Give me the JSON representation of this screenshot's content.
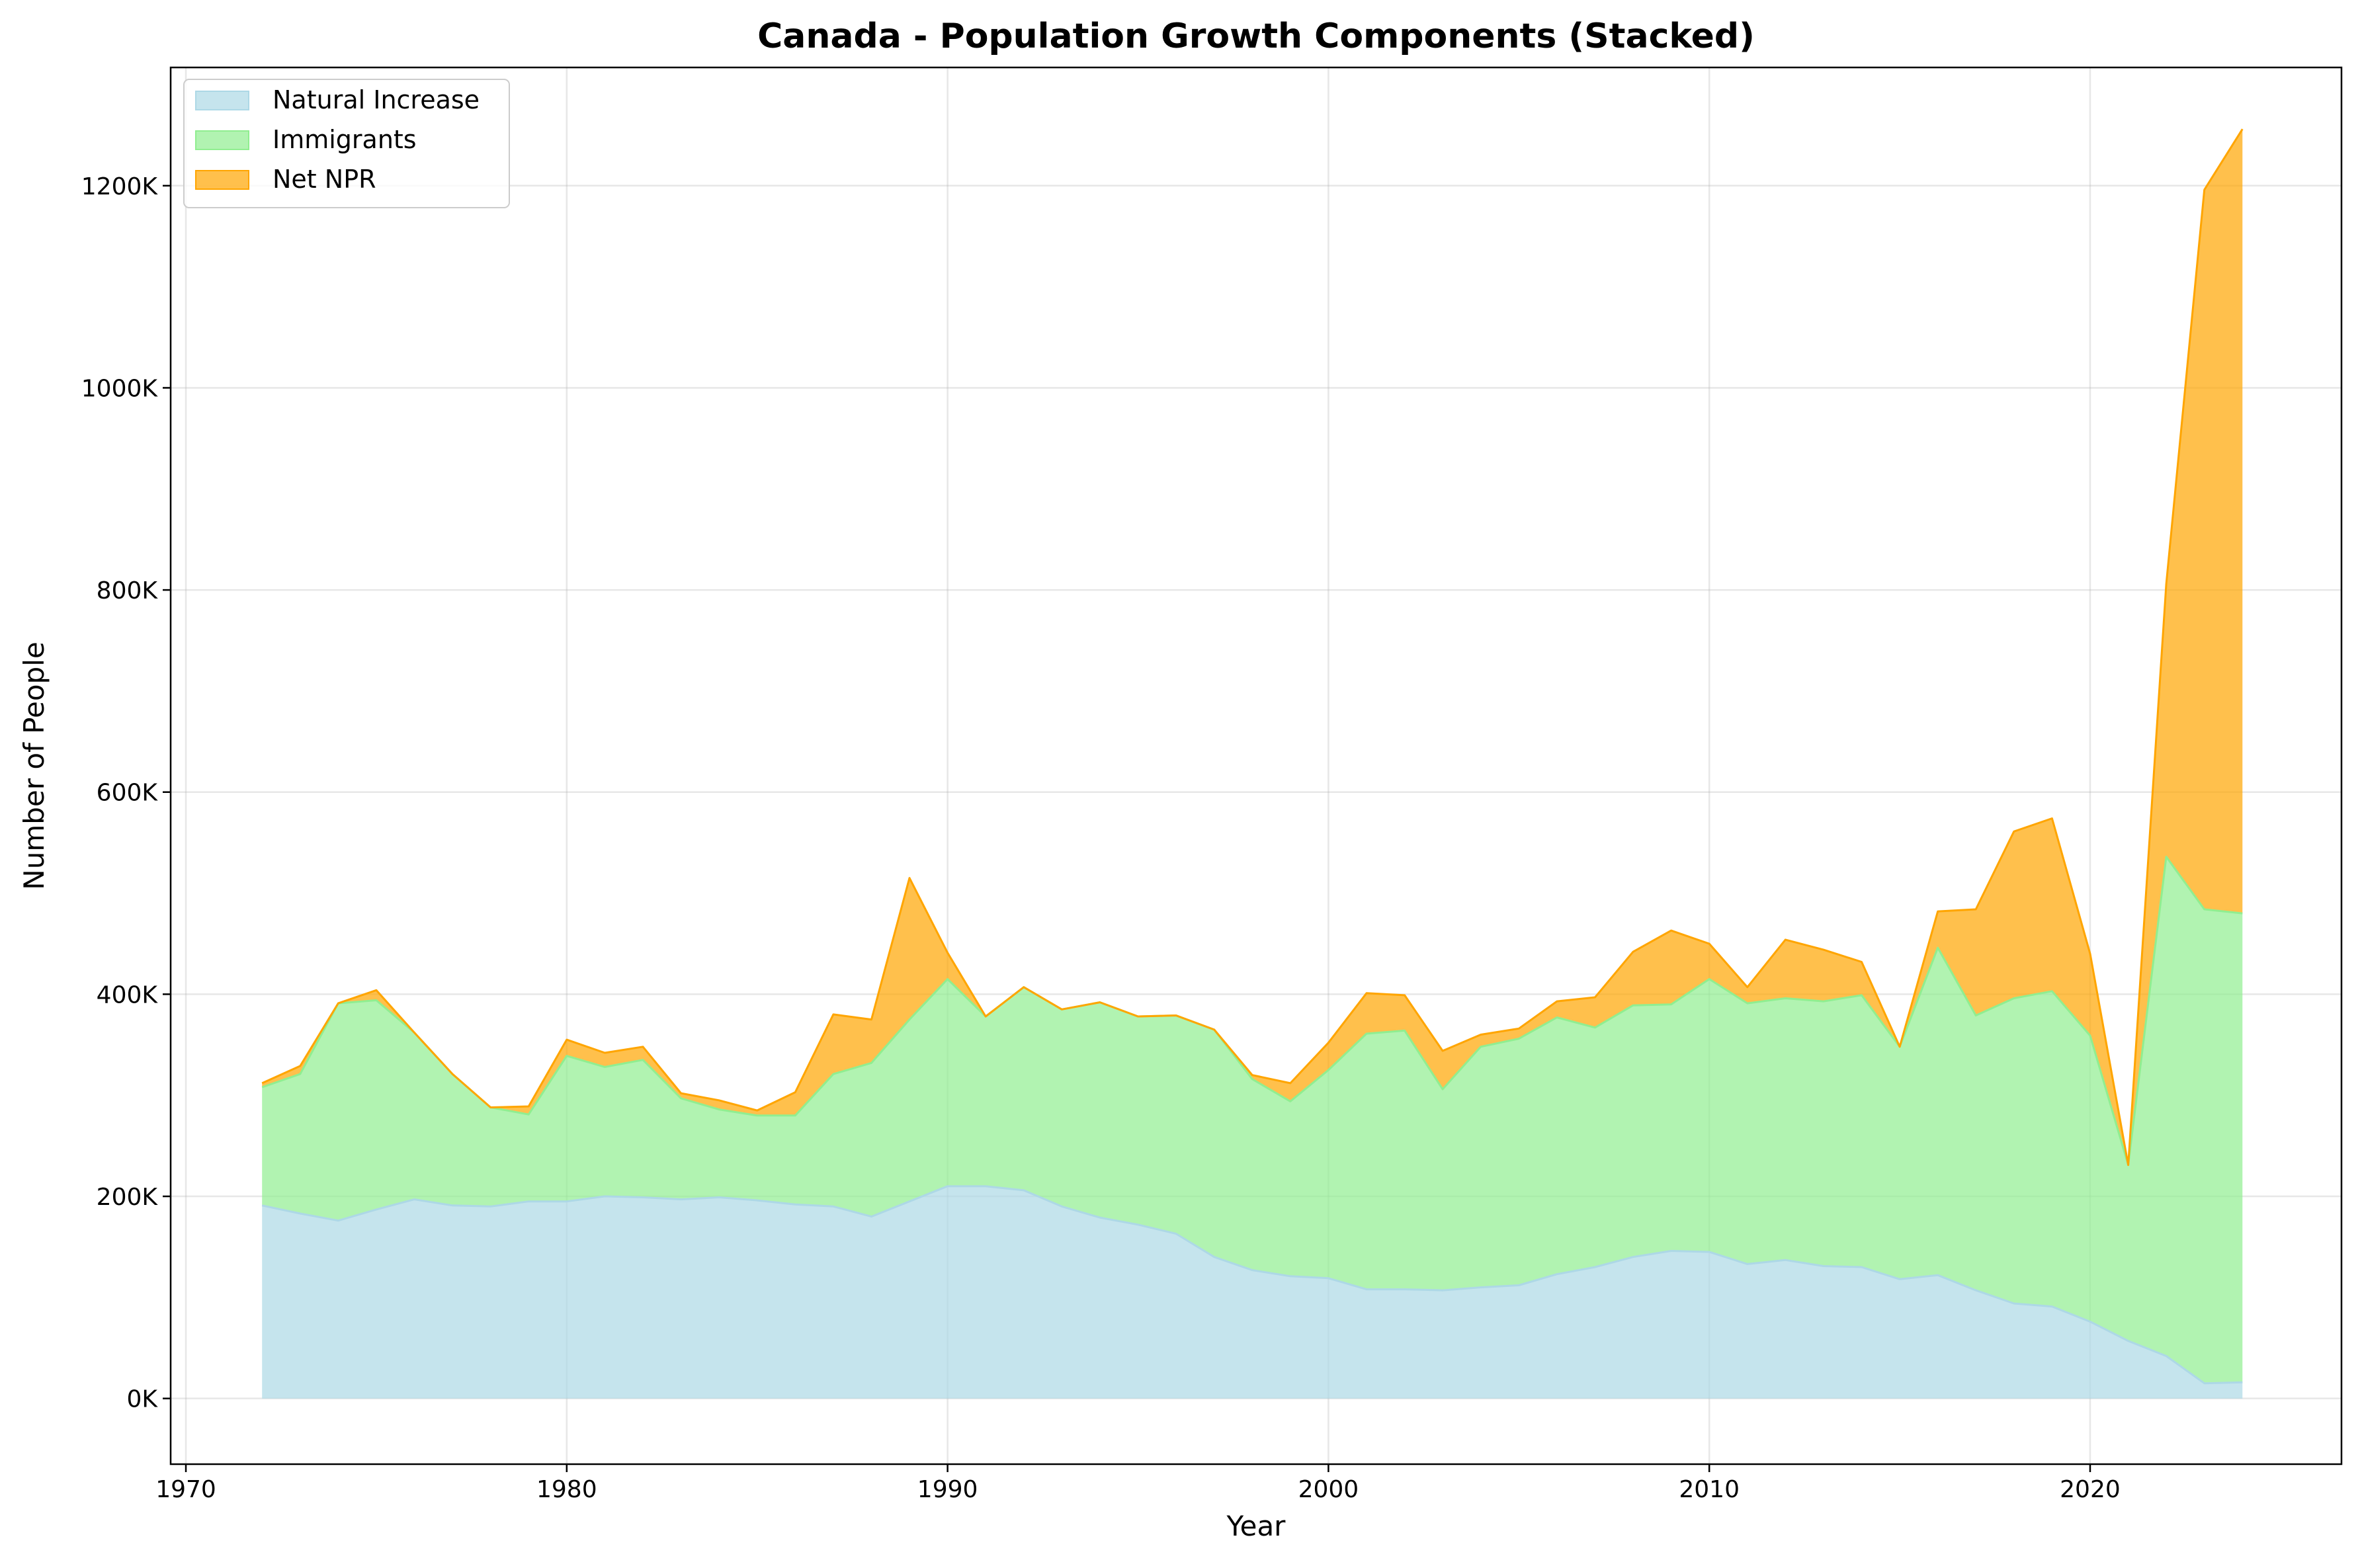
{
  "chart_data": {
    "type": "area",
    "stacked": true,
    "title": "Canada - Population Growth Components (Stacked)",
    "xlabel": "Year",
    "ylabel": "Number of People",
    "xlim": [
      1969.6,
      2026.6
    ],
    "ylim": [
      -65000,
      1317000
    ],
    "grid": true,
    "legend_position": "top-left",
    "x_ticks": [
      1970,
      1980,
      1990,
      2000,
      2010,
      2020
    ],
    "x_tick_labels": [
      "1970",
      "1980",
      "1990",
      "2000",
      "2010",
      "2020"
    ],
    "y_ticks": [
      0,
      200000,
      400000,
      600000,
      800000,
      1000000,
      1200000
    ],
    "y_tick_labels": [
      "0K",
      "200K",
      "400K",
      "600K",
      "800K",
      "1000K",
      "1200K"
    ],
    "x": [
      1972,
      1973,
      1974,
      1975,
      1976,
      1977,
      1978,
      1979,
      1980,
      1981,
      1982,
      1983,
      1984,
      1985,
      1986,
      1987,
      1988,
      1989,
      1990,
      1991,
      1992,
      1993,
      1994,
      1995,
      1996,
      1997,
      1998,
      1999,
      2000,
      2001,
      2002,
      2003,
      2004,
      2005,
      2006,
      2007,
      2008,
      2009,
      2010,
      2011,
      2012,
      2013,
      2014,
      2015,
      2016,
      2017,
      2018,
      2019,
      2020,
      2021,
      2022,
      2023,
      2024
    ],
    "series": [
      {
        "name": "Natural Increase",
        "fill": "#add8e6",
        "line": "#add8e6",
        "values": [
          191000,
          183000,
          176000,
          187000,
          197000,
          191000,
          190000,
          195000,
          195000,
          200000,
          199000,
          197000,
          199000,
          196000,
          192000,
          190000,
          180000,
          195000,
          210000,
          210000,
          206000,
          190000,
          179000,
          172000,
          163000,
          140000,
          127000,
          121000,
          119000,
          108000,
          108000,
          107000,
          110000,
          112000,
          123000,
          130000,
          140000,
          146000,
          145000,
          133000,
          137000,
          131000,
          130000,
          118000,
          122000,
          107000,
          94000,
          91000,
          76000,
          57000,
          42000,
          15000,
          16000
        ]
      },
      {
        "name": "Immigrants",
        "fill": "#90ee90",
        "line": "#90ee90",
        "values": [
          117000,
          138000,
          215000,
          207000,
          165000,
          130000,
          98000,
          86000,
          144000,
          128000,
          136000,
          100000,
          87000,
          84000,
          88000,
          131000,
          152000,
          180000,
          205000,
          168000,
          201000,
          195000,
          213000,
          206000,
          216000,
          225000,
          189000,
          173000,
          206000,
          253000,
          256000,
          199000,
          238000,
          244000,
          254000,
          237000,
          249000,
          244000,
          270000,
          258000,
          259000,
          262000,
          269000,
          230000,
          324000,
          272000,
          302000,
          312000,
          283000,
          174000,
          494000,
          469000,
          464000
        ]
      },
      {
        "name": "Net NPR",
        "fill": "#ffa500",
        "line": "#ffa500",
        "values": [
          4000,
          8000,
          0,
          10000,
          0,
          0,
          0,
          8000,
          16000,
          14000,
          13000,
          5000,
          9000,
          5000,
          23000,
          59000,
          43000,
          140000,
          26000,
          0,
          0,
          0,
          0,
          0,
          0,
          0,
          4000,
          18000,
          27000,
          40000,
          35000,
          38000,
          12000,
          10000,
          16000,
          30000,
          53000,
          73000,
          35000,
          16000,
          58000,
          51000,
          33000,
          0,
          36000,
          105000,
          165000,
          171000,
          81000,
          0,
          270000,
          712000,
          776000
        ]
      }
    ]
  }
}
